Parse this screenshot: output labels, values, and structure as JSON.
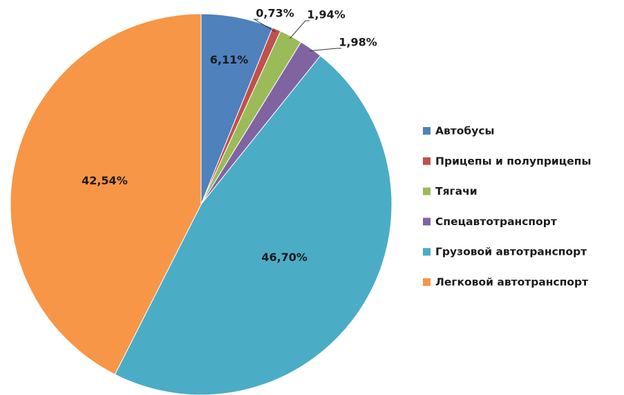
{
  "chart_data": {
    "type": "pie",
    "categories": [
      "Автобусы",
      "Прицепы и полуприцепы",
      "Тягачи",
      "Спецавтотранспорт",
      "Грузовой автотранспорт",
      "Легковой автотранспорт"
    ],
    "values": [
      6.11,
      0.73,
      1.94,
      1.98,
      46.7,
      42.54
    ],
    "value_labels": [
      "6,11%",
      "0,73%",
      "1,94%",
      "1,98%",
      "46,70%",
      "42,54%"
    ],
    "colors": [
      "#4f81bd",
      "#c0504d",
      "#9bbb59",
      "#8064a2",
      "#4bacc6",
      "#f79646"
    ],
    "legend": "right"
  }
}
